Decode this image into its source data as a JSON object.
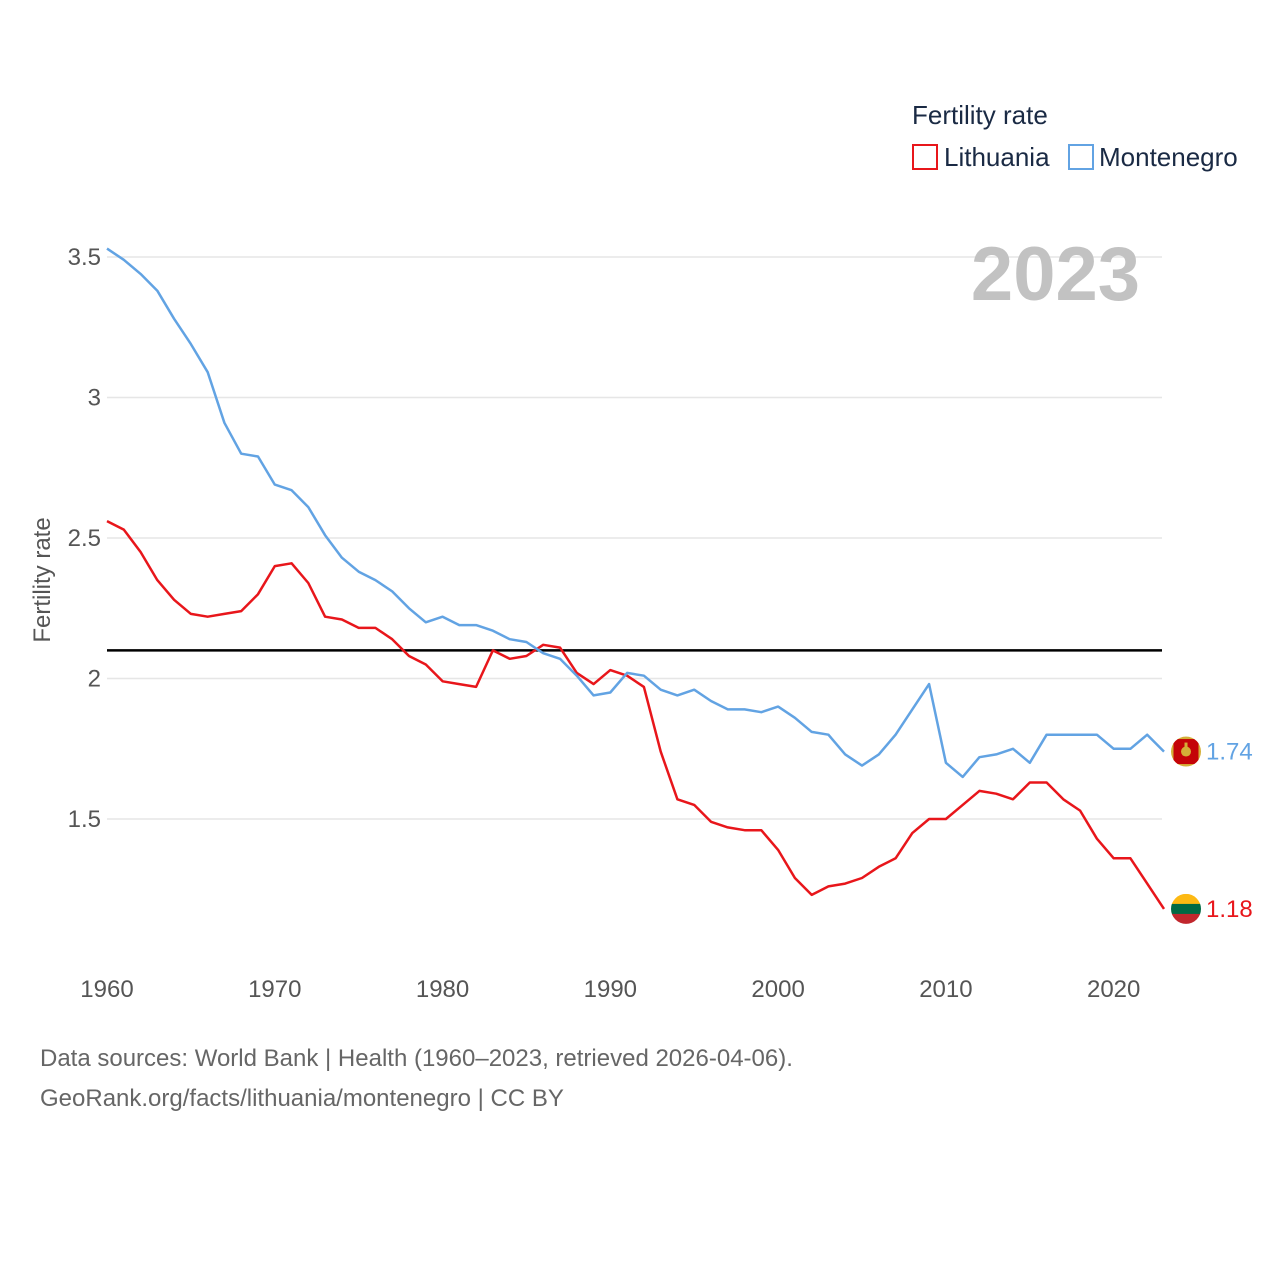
{
  "chart_data": {
    "type": "line",
    "title": "Fertility rate",
    "ylabel": "Fertility rate",
    "xlabel": "",
    "current_year": "2023",
    "xlim": [
      1960,
      2023
    ],
    "ylim": [
      1.0,
      3.6
    ],
    "y_ticks": [
      {
        "value": 1.5,
        "label": "1.5"
      },
      {
        "value": 2,
        "label": "2"
      },
      {
        "value": 2.5,
        "label": "2.5"
      },
      {
        "value": 3,
        "label": "3"
      },
      {
        "value": 3.5,
        "label": "3.5"
      }
    ],
    "x_ticks": [
      {
        "value": 1960,
        "label": "1960"
      },
      {
        "value": 1970,
        "label": "1970"
      },
      {
        "value": 1980,
        "label": "1980"
      },
      {
        "value": 1990,
        "label": "1990"
      },
      {
        "value": 2000,
        "label": "2000"
      },
      {
        "value": 2010,
        "label": "2010"
      },
      {
        "value": 2020,
        "label": "2020"
      }
    ],
    "reference_line": {
      "value": 2.1,
      "color": "#000000"
    },
    "x": [
      1960,
      1961,
      1962,
      1963,
      1964,
      1965,
      1966,
      1967,
      1968,
      1969,
      1970,
      1971,
      1972,
      1973,
      1974,
      1975,
      1976,
      1977,
      1978,
      1979,
      1980,
      1981,
      1982,
      1983,
      1984,
      1985,
      1986,
      1987,
      1988,
      1989,
      1990,
      1991,
      1992,
      1993,
      1994,
      1995,
      1996,
      1997,
      1998,
      1999,
      2000,
      2001,
      2002,
      2003,
      2004,
      2005,
      2006,
      2007,
      2008,
      2009,
      2010,
      2011,
      2012,
      2013,
      2014,
      2015,
      2016,
      2017,
      2018,
      2019,
      2020,
      2021,
      2022,
      2023
    ],
    "series": [
      {
        "name": "Lithuania",
        "color": "#e8161b",
        "end_label": "1.18",
        "values": [
          2.56,
          2.53,
          2.45,
          2.35,
          2.28,
          2.23,
          2.22,
          2.23,
          2.24,
          2.3,
          2.4,
          2.41,
          2.34,
          2.22,
          2.21,
          2.18,
          2.18,
          2.14,
          2.08,
          2.05,
          1.99,
          1.98,
          1.97,
          2.1,
          2.07,
          2.08,
          2.12,
          2.11,
          2.02,
          1.98,
          2.03,
          2.01,
          1.97,
          1.74,
          1.57,
          1.55,
          1.49,
          1.47,
          1.46,
          1.46,
          1.39,
          1.29,
          1.23,
          1.26,
          1.27,
          1.29,
          1.33,
          1.36,
          1.45,
          1.5,
          1.5,
          1.55,
          1.6,
          1.59,
          1.57,
          1.63,
          1.63,
          1.57,
          1.53,
          1.43,
          1.36,
          1.36,
          1.27,
          1.18
        ]
      },
      {
        "name": "Montenegro",
        "color": "#62a3e3",
        "end_label": "1.74",
        "values": [
          3.53,
          3.49,
          3.44,
          3.38,
          3.28,
          3.19,
          3.09,
          2.91,
          2.8,
          2.79,
          2.69,
          2.67,
          2.61,
          2.51,
          2.43,
          2.38,
          2.35,
          2.31,
          2.25,
          2.2,
          2.22,
          2.19,
          2.19,
          2.17,
          2.14,
          2.13,
          2.09,
          2.07,
          2.01,
          1.94,
          1.95,
          2.02,
          2.01,
          1.96,
          1.94,
          1.96,
          1.92,
          1.89,
          1.89,
          1.88,
          1.9,
          1.86,
          1.81,
          1.8,
          1.73,
          1.69,
          1.73,
          1.8,
          1.89,
          1.98,
          1.7,
          1.65,
          1.72,
          1.73,
          1.75,
          1.7,
          1.8,
          1.8,
          1.8,
          1.8,
          1.75,
          1.75,
          1.8,
          1.74
        ]
      }
    ],
    "flags": [
      {
        "series": "Lithuania",
        "icon": "lithuania-flag-icon",
        "colors": [
          "#fdb913",
          "#006a44",
          "#c1272d"
        ]
      },
      {
        "series": "Montenegro",
        "icon": "montenegro-flag-icon",
        "colors": [
          "#c40308",
          "#d4af37",
          "#c40308"
        ]
      }
    ]
  },
  "footer": {
    "source_line": "Data sources: World Bank | Health (1960–2023, retrieved 2026-04-06).",
    "credit_line": "GeoRank.org/facts/lithuania/montenegro | CC BY"
  }
}
